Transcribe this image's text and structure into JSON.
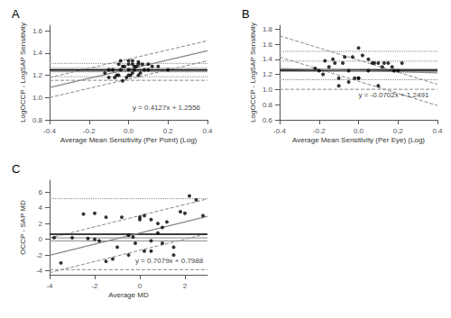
{
  "chart_data": [
    {
      "type": "scatter",
      "title": "A",
      "xlabel": "Average Mean Sensitivity (Per Point) (Log)",
      "ylabel": "LogOCCP - LogSAP Sensitivity",
      "xlim": [
        -0.4,
        0.4
      ],
      "ylim": [
        0.8,
        1.65
      ],
      "xticks": [
        -0.4,
        -0.2,
        {
          "value": 0.0,
          "label": "0.0"
        },
        0.2,
        0.4
      ],
      "yticks": [
        0.8,
        {
          "value": 1.0,
          "label": "1.0"
        },
        1.2,
        1.4,
        1.6
      ],
      "grid": false,
      "annotations": [
        {
          "text": "y = 0.4127x + 1.2556",
          "x": 0.02,
          "y": 0.88
        }
      ],
      "series": [
        {
          "type": "hline",
          "color": "black",
          "line_style": "solid",
          "values": [
            1.247
          ]
        },
        {
          "type": "hline",
          "color": "#888888",
          "line_style": "solid",
          "values": [
            1.262
          ]
        },
        {
          "type": "hline",
          "color": "#888888",
          "line_style": "solid",
          "values": [
            1.232
          ]
        },
        {
          "type": "hline",
          "color": "#888888",
          "line_style": "dotted",
          "values": [
            1.307
          ]
        },
        {
          "type": "hline",
          "color": "#888888",
          "line_style": "dotted",
          "values": [
            1.187
          ]
        },
        {
          "type": "hline",
          "color": "#888888",
          "line_style": "dashed",
          "values": [
            1.155
          ]
        },
        {
          "type": "line",
          "color": "#888888",
          "line_style": "solid",
          "x": [
            -0.4,
            0.4
          ],
          "values": [
            1.09052,
            1.42068
          ]
        },
        {
          "type": "line",
          "color": "#888888",
          "line_style": "dashed",
          "x": [
            -0.4,
            0.4
          ],
          "values": [
            1.18052,
            1.51068
          ]
        },
        {
          "type": "line",
          "color": "#888888",
          "line_style": "dashed",
          "x": [
            -0.4,
            0.4
          ],
          "values": [
            1.00052,
            1.33068
          ]
        },
        {
          "type": "scatter",
          "color": "black",
          "x": [
            -0.12,
            -0.1,
            -0.1,
            -0.08,
            -0.07,
            -0.06,
            -0.05,
            -0.05,
            -0.04,
            -0.03,
            -0.03,
            -0.02,
            -0.01,
            0.0,
            0.0,
            0.0,
            0.01,
            0.02,
            0.02,
            0.03,
            0.03,
            0.04,
            0.05,
            0.05,
            0.06,
            0.07,
            0.08,
            0.1,
            0.1,
            0.12,
            0.15,
            0.2,
            0.0,
            0.02,
            -0.04,
            0.05
          ],
          "values": [
            1.22,
            1.18,
            1.25,
            1.25,
            1.18,
            1.2,
            1.2,
            1.3,
            1.25,
            1.15,
            1.28,
            1.28,
            1.18,
            1.2,
            1.25,
            1.3,
            1.2,
            1.22,
            1.3,
            1.25,
            1.28,
            1.28,
            1.2,
            1.3,
            1.22,
            1.3,
            1.25,
            1.25,
            1.3,
            1.28,
            1.28,
            1.25,
            1.33,
            1.33,
            1.33,
            1.32
          ]
        }
      ]
    },
    {
      "type": "scatter",
      "title": "B",
      "xlabel": "Average Mean Sensitivity (Per Eye) (Log)",
      "ylabel": "LogOCCP - LogSAP Sensitivity",
      "xlim": [
        -0.4,
        0.4
      ],
      "ylim": [
        0.6,
        1.85
      ],
      "xticks": [
        -0.4,
        -0.2,
        {
          "value": 0.0,
          "label": "0.0"
        },
        0.2,
        0.4
      ],
      "yticks": [
        0.6,
        0.8,
        {
          "value": 1.0,
          "label": "1.0"
        },
        1.2,
        1.4,
        1.6,
        1.8
      ],
      "grid": false,
      "annotations": [
        {
          "text": "y = -0.0702x + 1.2491",
          "x": 0.0,
          "y": 0.88
        }
      ],
      "series": [
        {
          "type": "hline",
          "color": "black",
          "line_style": "solid",
          "values": [
            1.255
          ]
        },
        {
          "type": "hline",
          "color": "#888888",
          "line_style": "solid",
          "values": [
            1.27
          ]
        },
        {
          "type": "hline",
          "color": "#888888",
          "line_style": "solid",
          "values": [
            1.24
          ]
        },
        {
          "type": "hline",
          "color": "#888888",
          "line_style": "dotted",
          "values": [
            1.505
          ]
        },
        {
          "type": "hline",
          "color": "#888888",
          "line_style": "dashed",
          "values": [
            1.003
          ]
        },
        {
          "type": "hline",
          "color": "#888888",
          "line_style": "dotted",
          "values": [
            1.375
          ]
        },
        {
          "type": "hline",
          "color": "#888888",
          "line_style": "dotted",
          "values": [
            1.13
          ]
        },
        {
          "type": "line",
          "color": "#888888",
          "line_style": "solid",
          "x": [
            -0.4,
            0.4
          ],
          "values": [
            1.27718,
            1.22102
          ]
        },
        {
          "type": "line",
          "color": "#888888",
          "line_style": "dashed",
          "x": [
            -0.4,
            0.4
          ],
          "values": [
            1.7091,
            1.0691
          ]
        },
        {
          "type": "line",
          "color": "#888888",
          "line_style": "dashed",
          "x": [
            -0.4,
            0.4
          ],
          "values": [
            1.4291,
            0.7891
          ]
        },
        {
          "type": "scatter",
          "color": "black",
          "x": [
            -0.22,
            -0.2,
            -0.18,
            -0.17,
            -0.15,
            -0.13,
            -0.12,
            -0.1,
            -0.08,
            -0.07,
            -0.05,
            -0.05,
            -0.03,
            -0.02,
            0.0,
            0.0,
            0.0,
            0.02,
            0.05,
            0.07,
            0.08,
            0.1,
            0.1,
            0.12,
            0.13,
            0.15,
            0.17,
            0.18,
            0.2,
            0.22,
            -0.1,
            0.05
          ],
          "values": [
            1.28,
            1.25,
            1.2,
            1.38,
            1.3,
            1.4,
            1.35,
            1.15,
            1.35,
            1.43,
            1.1,
            1.25,
            1.43,
            1.15,
            1.55,
            1.15,
            1.15,
            1.45,
            1.4,
            1.35,
            1.35,
            1.35,
            1.05,
            1.3,
            1.35,
            1.35,
            1.3,
            1.25,
            1.25,
            1.35,
            1.05,
            1.25
          ]
        }
      ]
    },
    {
      "type": "scatter",
      "title": "C",
      "xlabel": "Average MD",
      "ylabel": "OCCP - SAP MD",
      "xlim": [
        -4.0,
        3.0
      ],
      "ylim": [
        -4.5,
        7.5
      ],
      "xticks": [
        -4,
        -2,
        0,
        2
      ],
      "yticks": [
        -4,
        -2,
        0,
        2,
        4,
        6
      ],
      "grid": false,
      "annotations": [
        {
          "text": "y = 0.7079x + 0.7988",
          "x": -0.2,
          "y": -3.2
        }
      ],
      "series": [
        {
          "type": "hline",
          "color": "black",
          "line_style": "solid",
          "values": [
            0.65
          ]
        },
        {
          "type": "hline",
          "color": "#888888",
          "line_style": "solid",
          "values": [
            0.18
          ]
        },
        {
          "type": "hline",
          "color": "#888888",
          "line_style": "solid",
          "values": [
            -0.2
          ]
        },
        {
          "type": "hline",
          "color": "#888888",
          "line_style": "dotted",
          "values": [
            5.15
          ]
        },
        {
          "type": "hline",
          "color": "#888888",
          "line_style": "dashed",
          "values": [
            -3.85
          ]
        },
        {
          "type": "line",
          "color": "#888888",
          "line_style": "solid",
          "x": [
            -4.0,
            3.0
          ],
          "values": [
            -2.0328,
            2.9225
          ]
        },
        {
          "type": "line",
          "color": "#888888",
          "line_style": "dashed",
          "x": [
            -4.0,
            3.0
          ],
          "values": [
            0.1672,
            5.1225
          ]
        },
        {
          "type": "line",
          "color": "#888888",
          "line_style": "dashed",
          "x": [
            -4.0,
            3.0
          ],
          "values": [
            -4.2328,
            0.7225
          ]
        },
        {
          "type": "scatter",
          "color": "black",
          "x": [
            -3.8,
            -3.5,
            -3.0,
            -2.5,
            -2.3,
            -2.0,
            -2.0,
            -1.8,
            -1.5,
            -1.5,
            -1.2,
            -1.0,
            -0.8,
            -0.5,
            -0.5,
            -0.3,
            -0.2,
            0.0,
            0.0,
            0.2,
            0.2,
            0.5,
            0.5,
            0.5,
            0.8,
            0.8,
            1.0,
            1.0,
            1.2,
            1.5,
            1.5,
            1.8,
            2.0,
            2.2,
            2.5,
            2.8
          ],
          "values": [
            0.2,
            -3.0,
            0.2,
            3.2,
            0.1,
            0.0,
            3.3,
            -0.2,
            -2.8,
            2.8,
            -2.5,
            -1.0,
            2.8,
            -2.0,
            0.5,
            0.3,
            -0.5,
            2.5,
            2.8,
            3.0,
            -1.5,
            2.5,
            -1.5,
            -0.2,
            2.0,
            0.8,
            1.5,
            -0.5,
            2.2,
            -1.0,
            -2.0,
            3.5,
            3.3,
            5.5,
            5.0,
            3.0
          ]
        }
      ]
    }
  ]
}
